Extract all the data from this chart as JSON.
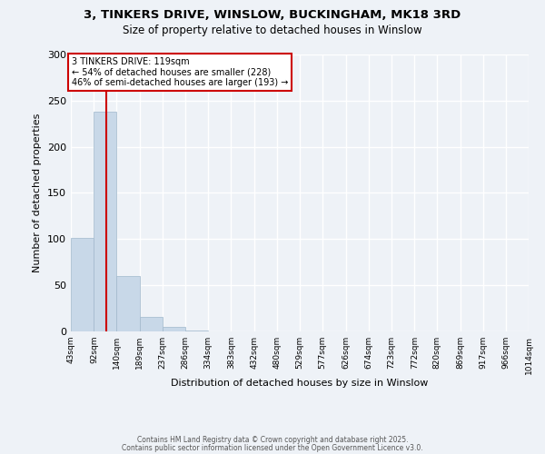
{
  "title": "3, TINKERS DRIVE, WINSLOW, BUCKINGHAM, MK18 3RD",
  "subtitle": "Size of property relative to detached houses in Winslow",
  "xlabel": "Distribution of detached houses by size in Winslow",
  "ylabel": "Number of detached properties",
  "bar_edges": [
    43,
    92,
    140,
    189,
    237,
    286,
    334,
    383,
    432,
    480,
    529,
    577,
    626,
    674,
    723,
    772,
    820,
    869,
    917,
    966,
    1014
  ],
  "bar_heights": [
    101,
    238,
    60,
    16,
    5,
    1,
    0,
    0,
    0,
    0,
    0,
    0,
    0,
    0,
    0,
    0,
    0,
    0,
    0,
    0
  ],
  "bar_color": "#c8d8e8",
  "bar_edge_color": "#a0b8cc",
  "vline_x": 119,
  "vline_color": "#cc0000",
  "annotation_title": "3 TINKERS DRIVE: 119sqm",
  "annotation_line1": "← 54% of detached houses are smaller (228)",
  "annotation_line2": "46% of semi-detached houses are larger (193) →",
  "annotation_box_color": "#ffffff",
  "annotation_box_edge_color": "#cc0000",
  "ylim": [
    0,
    300
  ],
  "yticks": [
    0,
    50,
    100,
    150,
    200,
    250,
    300
  ],
  "bg_color": "#eef2f7",
  "grid_color": "#ffffff",
  "footer_line1": "Contains HM Land Registry data © Crown copyright and database right 2025.",
  "footer_line2": "Contains public sector information licensed under the Open Government Licence v3.0."
}
